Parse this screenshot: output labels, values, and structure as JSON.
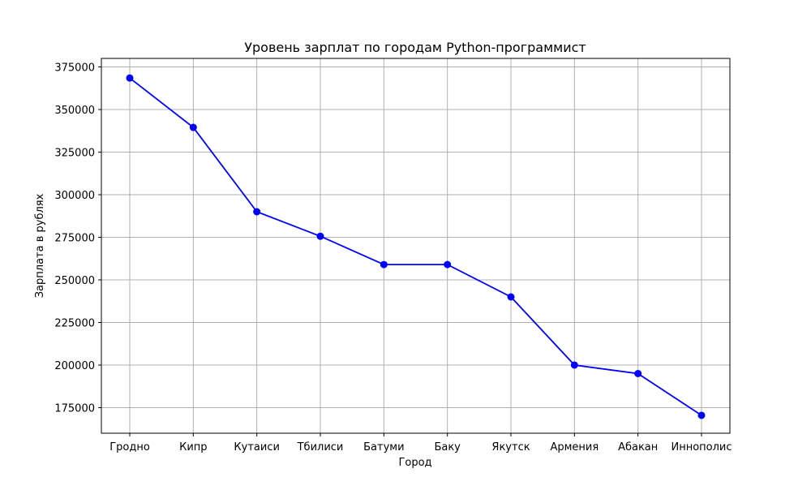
{
  "chart_data": {
    "type": "line",
    "title": "Уровень зарплат по городам Python-программист",
    "xlabel": "Город",
    "ylabel": "Зарплата в рублях",
    "categories": [
      "Гродно",
      "Кипр",
      "Кутаиси",
      "Тбилиси",
      "Батуми",
      "Баку",
      "Якутск",
      "Армения",
      "Абакан",
      "Иннополис"
    ],
    "series": [
      {
        "values": [
          368500,
          339500,
          290000,
          275600,
          259000,
          259000,
          240000,
          200000,
          195000,
          170500
        ],
        "color": "#0000ff",
        "marker": "circle"
      }
    ],
    "yticks": [
      175000,
      200000,
      225000,
      250000,
      275000,
      300000,
      325000,
      350000,
      375000
    ],
    "ylim": [
      160000,
      380000
    ],
    "grid": true,
    "legend": false
  }
}
